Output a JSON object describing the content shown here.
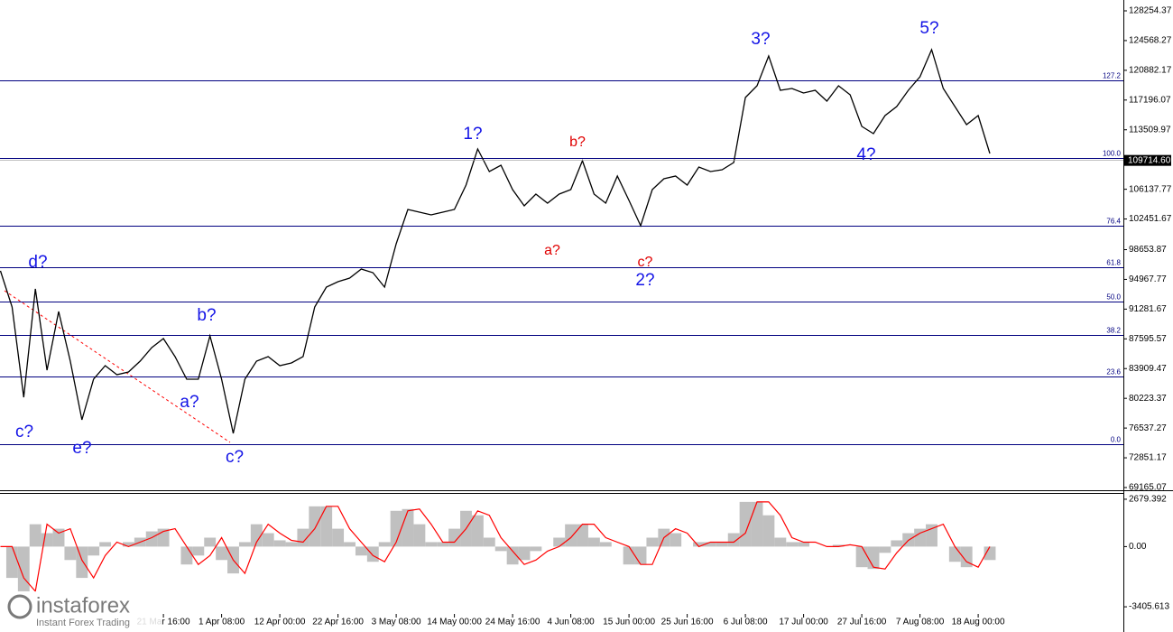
{
  "chart_data": {
    "type": "line",
    "color": "#000000",
    "categories": [
      null,
      null,
      null,
      null,
      null,
      null,
      null,
      null,
      null,
      null,
      null,
      null,
      null,
      null,
      "21 Mar 16:00",
      null,
      null,
      null,
      null,
      "1 Apr 08:00",
      null,
      null,
      null,
      null,
      "12 Apr 00:00",
      null,
      null,
      null,
      null,
      "22 Apr 16:00",
      null,
      null,
      null,
      null,
      "3 May 08:00",
      null,
      null,
      null,
      null,
      "14 May 00:00",
      null,
      null,
      null,
      null,
      "24 May 16:00",
      null,
      null,
      null,
      null,
      "4 Jun 08:00",
      null,
      null,
      null,
      null,
      "15 Jun 00:00",
      null,
      null,
      null,
      null,
      "25 Jun 16:00",
      null,
      null,
      null,
      null,
      "6 Jul 08:00",
      null,
      null,
      null,
      null,
      "17 Jul 00:00",
      null,
      null,
      null,
      null,
      "27 Jul 16:00",
      null,
      null,
      null,
      null,
      "7 Aug 08:00",
      null,
      null,
      null,
      null,
      "18 Aug 00:00",
      null
    ],
    "values": [
      96024,
      91548,
      80357,
      93786,
      83714,
      90988,
      84833,
      77559,
      82595,
      84273,
      83154,
      83490,
      84833,
      86512,
      87631,
      85392,
      82595,
      82595,
      87966,
      82595,
      75880,
      82595,
      84833,
      85392,
      84273,
      84609,
      85392,
      91548,
      94010,
      94681,
      95129,
      96248,
      95800,
      94010,
      99381,
      103634,
      103298,
      102962,
      103298,
      103634,
      106655,
      111132,
      108334,
      109117,
      106096,
      104081,
      105536,
      104417,
      105536,
      106096,
      109677,
      105536,
      104417,
      107774,
      104753,
      101619,
      106096,
      107439,
      107774,
      106655,
      108894,
      108334,
      108558,
      109453,
      117511,
      118965,
      122658,
      118406,
      118630,
      118070,
      118406,
      117063,
      118965,
      117846,
      113930,
      113034,
      115272,
      116392,
      118406,
      120085,
      123442,
      118630,
      116392,
      114153,
      115272,
      110572
    ],
    "ylim": [
      68829,
      129597
    ],
    "yticks": [
      128254.37,
      124568.27,
      120882.17,
      117196.07,
      113509.97,
      106137.77,
      102451.67,
      98653.87,
      94967.77,
      91281.67,
      87595.57,
      83909.47,
      80223.37,
      76537.27,
      72851.17,
      69165.07
    ],
    "current_price": {
      "value": 109714.6,
      "label": "109714.60"
    },
    "fib_color": "#000080",
    "fib_levels": [
      {
        "label": "127.2",
        "value": 119662
      },
      {
        "label": "100.0",
        "value": 110014
      },
      {
        "label": "76.4",
        "value": 101622
      },
      {
        "label": "61.8",
        "value": 96464
      },
      {
        "label": "50.0",
        "value": 92223
      },
      {
        "label": "38.2",
        "value": 88083
      },
      {
        "label": "23.6",
        "value": 82935
      },
      {
        "label": "0.0",
        "value": 74543
      }
    ],
    "annotations": [
      {
        "text": "d?",
        "color": "#1414e6"
      },
      {
        "text": "c?",
        "color": "#1414e6"
      },
      {
        "text": "e?",
        "color": "#1414e6"
      },
      {
        "text": "b?",
        "color": "#1414e6"
      },
      {
        "text": "a?",
        "color": "#1414e6"
      },
      {
        "text": "c?",
        "color": "#1414e6"
      },
      {
        "text": "1?",
        "color": "#1414e6"
      },
      {
        "text": "b?",
        "color": "#e00000"
      },
      {
        "text": "a?",
        "color": "#e00000"
      },
      {
        "text": "c?",
        "color": "#e00000"
      },
      {
        "text": "2?",
        "color": "#1414e6"
      },
      {
        "text": "3?",
        "color": "#1414e6"
      },
      {
        "text": "4?",
        "color": "#1414e6"
      },
      {
        "text": "5?",
        "color": "#1414e6"
      }
    ],
    "oscillator": {
      "type": "histogram",
      "hist_color": "#c0c0c0",
      "signal_color": "#ff0000",
      "ylim": [
        -3810,
        2983
      ],
      "yticks": [
        2679.392,
        {
          "value": 0,
          "label": "0.00"
        },
        -3405.613
      ],
      "histogram": [
        0,
        -1771,
        -2530,
        1265,
        759,
        1012,
        -759,
        -1771,
        -506,
        253,
        0,
        253,
        506,
        860,
        1012,
        0,
        -1012,
        -506,
        506,
        -759,
        -1518,
        253,
        1265,
        759,
        354,
        253,
        1012,
        2277,
        2277,
        1012,
        253,
        -506,
        -860,
        253,
        2024,
        2125,
        1265,
        253,
        253,
        1012,
        2024,
        1771,
        506,
        -253,
        -1012,
        -759,
        -253,
        0,
        506,
        1265,
        1265,
        506,
        253,
        0,
        -1012,
        -1012,
        506,
        1012,
        759,
        0,
        253,
        253,
        253,
        759,
        2530,
        2530,
        1771,
        506,
        253,
        253,
        0,
        0,
        101,
        0,
        -1164,
        -1265,
        -354,
        354,
        759,
        1012,
        1265,
        0,
        -860,
        -1164,
        0,
        -759
      ],
      "signal": [
        0,
        0,
        -1771,
        -2530,
        1265,
        759,
        1012,
        -759,
        -1771,
        -506,
        253,
        0,
        253,
        506,
        860,
        1012,
        0,
        -1012,
        -506,
        506,
        -759,
        -1518,
        253,
        1265,
        759,
        354,
        253,
        1012,
        2277,
        2277,
        1012,
        253,
        -506,
        -860,
        253,
        2024,
        2125,
        1265,
        253,
        253,
        1012,
        2024,
        1771,
        506,
        -253,
        -1012,
        -759,
        -253,
        0,
        506,
        1265,
        1265,
        506,
        253,
        0,
        -1012,
        -1012,
        506,
        1012,
        759,
        0,
        253,
        253,
        253,
        759,
        2530,
        2530,
        1771,
        506,
        253,
        253,
        0,
        0,
        101,
        0,
        -1164,
        -1265,
        -354,
        354,
        759,
        1012,
        1265,
        0,
        -860,
        -1164,
        0
      ]
    },
    "logo": {
      "name": "instaforex",
      "tagline": "Instant Forex Trading"
    }
  }
}
